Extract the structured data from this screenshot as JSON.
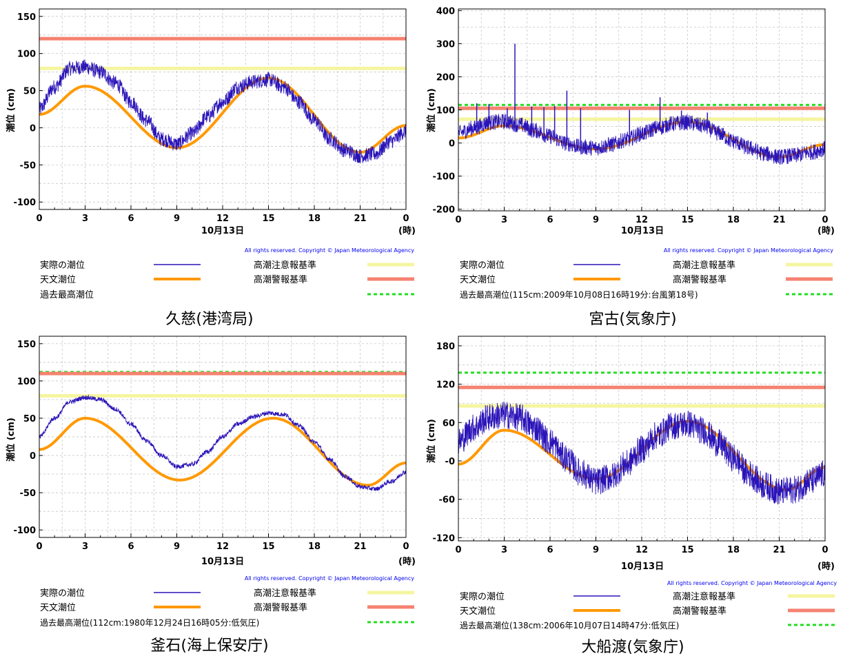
{
  "xaxis": {
    "ticks": [
      "0",
      "3",
      "6",
      "9",
      "12",
      "15",
      "18",
      "21",
      "0"
    ],
    "date_label": "10月13日",
    "unit": "(時)"
  },
  "ylabel": "潮位 (cm)",
  "copyright": "All rights reserved. Copyright © Japan Meteorological Agency",
  "legend": {
    "actual": "実際の潮位",
    "astro": "天文潮位",
    "caution": "高潮注意報基準",
    "warning": "高潮警報基準"
  },
  "colors": {
    "actual": "#2a14b8",
    "astro": "#ff9900",
    "caution": "#f5f5a0",
    "warning": "#f58270",
    "record": "#22dd22",
    "grid": "#bdbdbd"
  },
  "chart_data": [
    {
      "type": "line",
      "station": "久慈(港湾局)",
      "xlim": [
        0,
        24
      ],
      "ylim": [
        -110,
        160
      ],
      "yticks": [
        "150",
        "100",
        "50",
        "0",
        "-50",
        "-100"
      ],
      "caution_level": 80,
      "warning_level": 120,
      "record_level": null,
      "record_label": "過去最高潮位",
      "astro_points": [
        [
          0,
          18
        ],
        [
          3,
          56
        ],
        [
          9,
          -27
        ],
        [
          15,
          67
        ],
        [
          21,
          -33
        ],
        [
          24,
          3
        ]
      ],
      "actual_points": [
        [
          0,
          25
        ],
        [
          1,
          55
        ],
        [
          2,
          80
        ],
        [
          3,
          82
        ],
        [
          4,
          75
        ],
        [
          5,
          60
        ],
        [
          6,
          35
        ],
        [
          7,
          10
        ],
        [
          8,
          -15
        ],
        [
          9,
          -22
        ],
        [
          10,
          -8
        ],
        [
          11,
          15
        ],
        [
          12,
          35
        ],
        [
          13,
          55
        ],
        [
          14,
          62
        ],
        [
          15,
          65
        ],
        [
          16,
          55
        ],
        [
          17,
          35
        ],
        [
          18,
          10
        ],
        [
          19,
          -15
        ],
        [
          20,
          -30
        ],
        [
          21,
          -38
        ],
        [
          22,
          -35
        ],
        [
          23,
          -18
        ],
        [
          24,
          -5
        ]
      ],
      "noise": 10
    },
    {
      "type": "line",
      "station": "宮古(気象庁)",
      "xlim": [
        0,
        24
      ],
      "ylim": [
        -205,
        405
      ],
      "yticks": [
        "400",
        "300",
        "200",
        "100",
        "0",
        "-100",
        "-200"
      ],
      "caution_level": 72,
      "warning_level": 105,
      "record_level": 115,
      "record_label": "過去最高潮位(115cm:2009年10月08日16時19分:台風第18号)",
      "astro_points": [
        [
          0,
          15
        ],
        [
          3,
          52
        ],
        [
          9,
          -18
        ],
        [
          15,
          64
        ],
        [
          21,
          -42
        ],
        [
          24,
          -5
        ]
      ],
      "actual_points": [
        [
          0,
          30
        ],
        [
          1,
          45
        ],
        [
          2,
          62
        ],
        [
          3,
          65
        ],
        [
          4,
          55
        ],
        [
          5,
          38
        ],
        [
          6,
          20
        ],
        [
          7,
          0
        ],
        [
          8,
          -12
        ],
        [
          9,
          -15
        ],
        [
          10,
          -5
        ],
        [
          11,
          10
        ],
        [
          12,
          28
        ],
        [
          13,
          45
        ],
        [
          14,
          58
        ],
        [
          15,
          62
        ],
        [
          16,
          52
        ],
        [
          17,
          30
        ],
        [
          18,
          5
        ],
        [
          19,
          -15
        ],
        [
          20,
          -32
        ],
        [
          21,
          -42
        ],
        [
          22,
          -38
        ],
        [
          23,
          -28
        ],
        [
          24,
          -18
        ]
      ],
      "noise": 24,
      "spikes": [
        [
          3.7,
          300
        ],
        [
          7.1,
          158
        ],
        [
          13.2,
          138
        ],
        [
          1.2,
          120
        ],
        [
          2.0,
          118
        ],
        [
          4.8,
          110
        ],
        [
          6.3,
          112
        ],
        [
          8.0,
          105
        ],
        [
          11.2,
          100
        ],
        [
          14.6,
          98
        ],
        [
          16.3,
          92
        ],
        [
          5.6,
          108
        ],
        [
          3.2,
          105
        ]
      ]
    },
    {
      "type": "line",
      "station": "釜石(海上保安庁)",
      "xlim": [
        0,
        24
      ],
      "ylim": [
        -110,
        160
      ],
      "yticks": [
        "150",
        "100",
        "50",
        "0",
        "-50",
        "-100"
      ],
      "caution_level": 80,
      "warning_level": 110,
      "record_level": 112,
      "record_label": "過去最高潮位(112cm:1980年12月24日16時05分:低気圧)",
      "astro_points": [
        [
          0,
          8
        ],
        [
          3,
          50
        ],
        [
          9.2,
          -33
        ],
        [
          15.3,
          50
        ],
        [
          21.5,
          -40
        ],
        [
          24,
          -10
        ]
      ],
      "actual_points": [
        [
          0,
          25
        ],
        [
          1,
          50
        ],
        [
          2,
          72
        ],
        [
          3,
          78
        ],
        [
          4,
          75
        ],
        [
          5,
          62
        ],
        [
          6,
          42
        ],
        [
          7,
          20
        ],
        [
          8,
          0
        ],
        [
          9,
          -15
        ],
        [
          10,
          -12
        ],
        [
          11,
          5
        ],
        [
          12,
          25
        ],
        [
          13,
          42
        ],
        [
          14,
          52
        ],
        [
          15,
          57
        ],
        [
          16,
          55
        ],
        [
          17,
          40
        ],
        [
          18,
          18
        ],
        [
          19,
          -5
        ],
        [
          20,
          -28
        ],
        [
          21,
          -42
        ],
        [
          22,
          -45
        ],
        [
          23,
          -35
        ],
        [
          24,
          -22
        ]
      ],
      "noise": 3
    },
    {
      "type": "line",
      "station": "大船渡(気象庁)",
      "xlim": [
        0,
        24
      ],
      "ylim": [
        -125,
        195
      ],
      "yticks": [
        "180",
        "120",
        "60",
        "-0",
        "-60",
        "-120"
      ],
      "caution_level": 86,
      "warning_level": 115,
      "record_level": 138,
      "record_label": "過去最高潮位(138cm:2006年10月07日14時47分:低気圧)",
      "astro_points": [
        [
          0,
          -5
        ],
        [
          3,
          48
        ],
        [
          9,
          -28
        ],
        [
          15,
          62
        ],
        [
          21.5,
          -45
        ],
        [
          24,
          -10
        ]
      ],
      "actual_points": [
        [
          0,
          30
        ],
        [
          1,
          52
        ],
        [
          2,
          68
        ],
        [
          3,
          72
        ],
        [
          4,
          68
        ],
        [
          5,
          52
        ],
        [
          6,
          30
        ],
        [
          7,
          5
        ],
        [
          8,
          -18
        ],
        [
          9,
          -32
        ],
        [
          10,
          -25
        ],
        [
          11,
          -5
        ],
        [
          12,
          18
        ],
        [
          13,
          40
        ],
        [
          14,
          55
        ],
        [
          15,
          58
        ],
        [
          16,
          48
        ],
        [
          17,
          28
        ],
        [
          18,
          5
        ],
        [
          19,
          -20
        ],
        [
          20,
          -38
        ],
        [
          21,
          -48
        ],
        [
          22,
          -45
        ],
        [
          23,
          -32
        ],
        [
          24,
          -20
        ]
      ],
      "noise": 22
    }
  ]
}
